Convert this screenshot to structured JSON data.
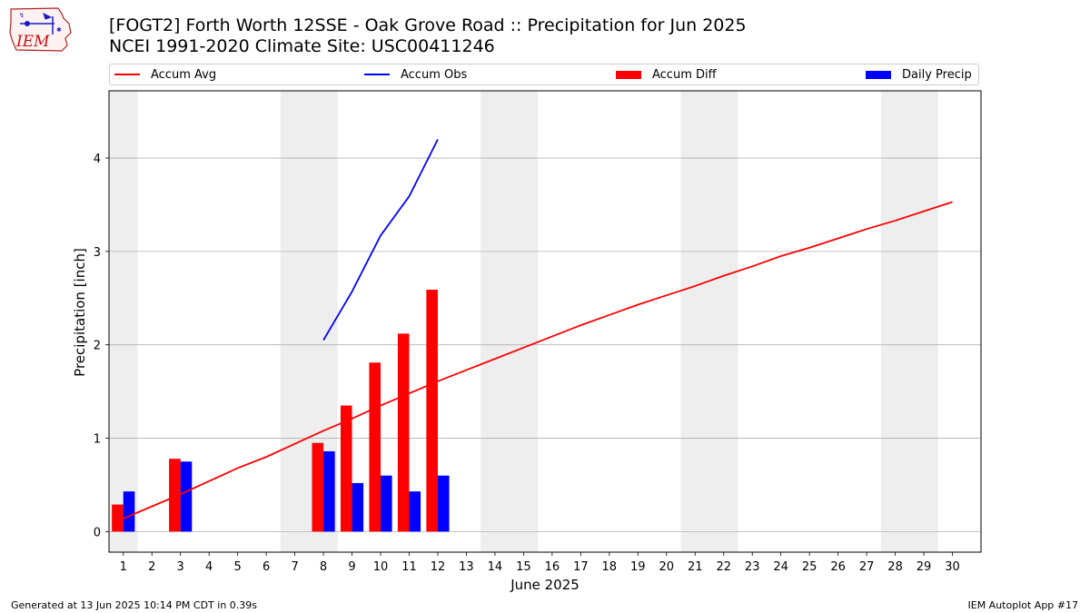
{
  "header": {
    "logo_text": "IEM",
    "title_line1": "[FOGT2] Forth Worth 12SSE - Oak Grove Road :: Precipitation for Jun 2025",
    "title_line2": "NCEI 1991-2020 Climate Site: USC00411246"
  },
  "legend": {
    "placement": "top",
    "items": [
      {
        "label": "Accum Avg",
        "kind": "line",
        "color": "#ff0000"
      },
      {
        "label": "Accum Obs",
        "kind": "line",
        "color": "#0000ff"
      },
      {
        "label": "Accum Diff",
        "kind": "bar",
        "color": "#ff0000"
      },
      {
        "label": "Daily Precip",
        "kind": "bar",
        "color": "#0000ff"
      }
    ]
  },
  "footer": {
    "left": "Generated at 13 Jun 2025 10:14 PM CDT in 0.39s",
    "right": "IEM Autoplot App #17"
  },
  "chart_data": {
    "type": "bar",
    "xlabel": "June 2025",
    "ylabel": "Precipitation [inch]",
    "xlim": [
      0.5,
      31
    ],
    "ylim": [
      -0.22,
      4.72
    ],
    "xticks": [
      1,
      2,
      3,
      4,
      5,
      6,
      7,
      8,
      9,
      10,
      11,
      12,
      13,
      14,
      15,
      16,
      17,
      18,
      19,
      20,
      21,
      22,
      23,
      24,
      25,
      26,
      27,
      28,
      29,
      30
    ],
    "yticks": [
      0,
      1,
      2,
      3,
      4
    ],
    "grid": "y",
    "weekend_shading": [
      [
        0.5,
        1.5
      ],
      [
        6.5,
        8.5
      ],
      [
        13.5,
        15.5
      ],
      [
        20.5,
        22.5
      ],
      [
        27.5,
        29.5
      ]
    ],
    "colors": {
      "avg": "#ff0000",
      "obs": "#0000ff",
      "diff": "#ff0000",
      "daily": "#0000ff",
      "shade": "#eeeeee",
      "grid": "#b0b0b0"
    },
    "series": [
      {
        "name": "Accum Avg",
        "kind": "line",
        "x": [
          1,
          2,
          3,
          4,
          5,
          6,
          7,
          8,
          9,
          10,
          11,
          12,
          13,
          14,
          15,
          16,
          17,
          18,
          19,
          20,
          21,
          22,
          23,
          24,
          25,
          26,
          27,
          28,
          29,
          30
        ],
        "values": [
          0.14,
          0.27,
          0.4,
          0.54,
          0.68,
          0.8,
          0.94,
          1.08,
          1.21,
          1.35,
          1.48,
          1.61,
          1.73,
          1.85,
          1.97,
          2.09,
          2.21,
          2.32,
          2.43,
          2.53,
          2.63,
          2.74,
          2.84,
          2.95,
          3.04,
          3.14,
          3.24,
          3.33,
          3.43,
          3.53
        ]
      },
      {
        "name": "Accum Obs",
        "kind": "line",
        "x": [
          8,
          9,
          10,
          11,
          12
        ],
        "values": [
          2.05,
          2.57,
          3.17,
          3.59,
          4.2
        ]
      },
      {
        "name": "Accum Diff",
        "kind": "bar",
        "x": [
          1,
          3,
          8,
          9,
          10,
          11,
          12
        ],
        "values": [
          0.29,
          0.78,
          0.95,
          1.35,
          1.81,
          2.12,
          2.59
        ]
      },
      {
        "name": "Daily Precip",
        "kind": "bar",
        "x": [
          1,
          3,
          8,
          9,
          10,
          11,
          12
        ],
        "values": [
          0.43,
          0.75,
          0.86,
          0.52,
          0.6,
          0.43,
          0.6
        ]
      }
    ]
  }
}
